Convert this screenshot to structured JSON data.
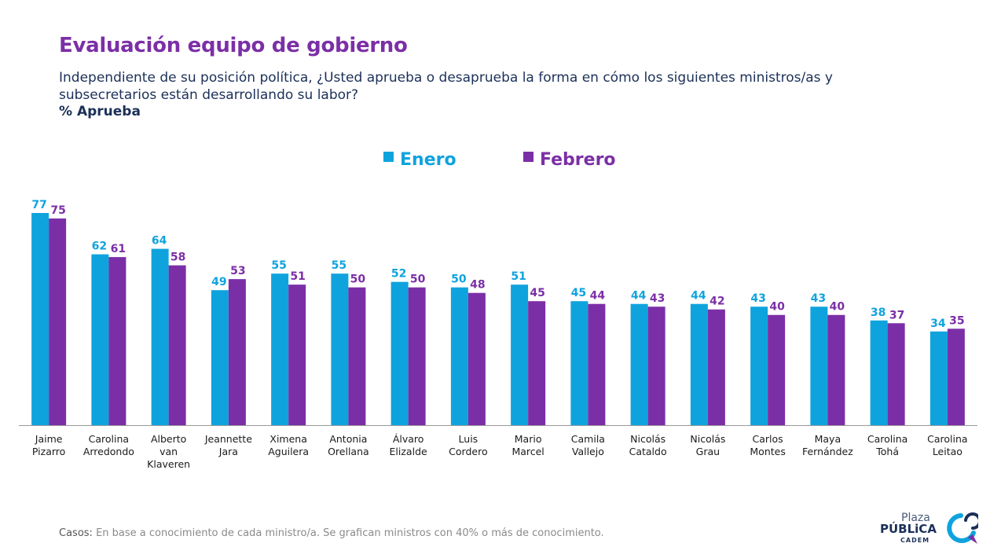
{
  "header": {
    "title": "Evaluación equipo de gobierno",
    "question": "Independiente de su posición política, ¿Usted aprueba o desaprueba la forma en cómo los siguientes ministros/as y subsecretarios están desarrollando su labor?",
    "metric": "% Aprueba"
  },
  "colors": {
    "enero": "#0fa3de",
    "febrero": "#7b2fa6",
    "title": "#7b2fa6",
    "text": "#1b3058"
  },
  "chart_data": {
    "type": "bar",
    "categories": [
      [
        "Jaime",
        "Pizarro"
      ],
      [
        "Carolina",
        "Arredondo"
      ],
      [
        "Alberto",
        "van",
        "Klaveren"
      ],
      [
        "Jeannette",
        "Jara"
      ],
      [
        "Ximena",
        "Aguilera"
      ],
      [
        "Antonia",
        "Orellana"
      ],
      [
        "Álvaro",
        "Elizalde"
      ],
      [
        "Luis",
        "Cordero"
      ],
      [
        "Mario",
        "Marcel"
      ],
      [
        "Camila",
        "Vallejo"
      ],
      [
        "Nicolás",
        "Cataldo"
      ],
      [
        "Nicolás",
        "Grau"
      ],
      [
        "Carlos",
        "Montes"
      ],
      [
        "Maya",
        "Fernández"
      ],
      [
        "Carolina",
        "Tohá"
      ],
      [
        "Carolina",
        "Leitao"
      ]
    ],
    "series": [
      {
        "name": "Enero",
        "color": "#0fa3de",
        "values": [
          77,
          62,
          64,
          49,
          55,
          55,
          52,
          50,
          51,
          45,
          44,
          44,
          43,
          43,
          38,
          34
        ]
      },
      {
        "name": "Febrero",
        "color": "#7b2fa6",
        "values": [
          75,
          61,
          58,
          53,
          51,
          50,
          50,
          48,
          45,
          44,
          43,
          42,
          40,
          40,
          37,
          35
        ]
      }
    ],
    "ylim": [
      0,
      77
    ],
    "legend": "top-center",
    "grid": false,
    "data_labels": true
  },
  "footnote": {
    "label": "Casos:",
    "text": "En base a conocimiento de cada ministro/a. Se grafican ministros con 40% o más de conocimiento."
  },
  "logo": {
    "line1": "Plaza",
    "line2": "PÚBLiCA",
    "line3": "CADEM"
  }
}
